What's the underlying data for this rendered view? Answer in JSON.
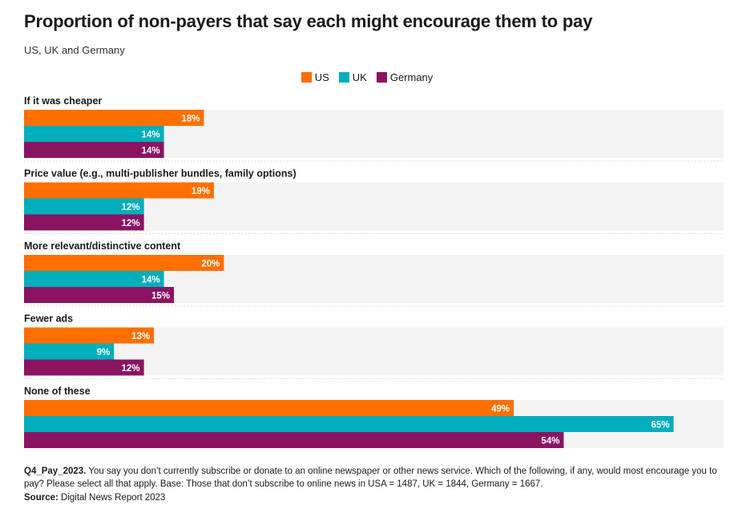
{
  "chart_data": {
    "type": "bar",
    "orientation": "horizontal",
    "title": "Proportion of non-payers that say each might encourage them to pay",
    "subtitle": "US, UK and Germany",
    "categories": [
      "If it was cheaper",
      "Price value (e.g., multi-publisher bundles, family options)",
      "More relevant/distinctive content",
      "Fewer ads",
      "None of these"
    ],
    "series": [
      {
        "name": "US",
        "color": "#ff6f00",
        "values": [
          18,
          19,
          20,
          13,
          49
        ]
      },
      {
        "name": "UK",
        "color": "#00aebc",
        "values": [
          14,
          12,
          14,
          9,
          65
        ]
      },
      {
        "name": "Germany",
        "color": "#8a1461",
        "values": [
          14,
          12,
          15,
          12,
          54
        ]
      }
    ],
    "value_suffix": "%",
    "xlim": [
      0,
      70
    ],
    "legend_position": "top-center",
    "grid": false
  },
  "footnote": {
    "code": "Q4_Pay_2023.",
    "text": " You say you don’t currently subscribe or donate to an online newspaper or other news service. Which of the following, if any, would most encourage you to pay? Please select all that apply. Base: Those that don’t subscribe to online news in USA = 1487, UK = 1844, Germany = 1667."
  },
  "source": {
    "label": "Source:",
    "text": " Digital News Report 2023"
  },
  "colors": {
    "track_background": "#f3f3f3",
    "separator": "#dddddd"
  }
}
